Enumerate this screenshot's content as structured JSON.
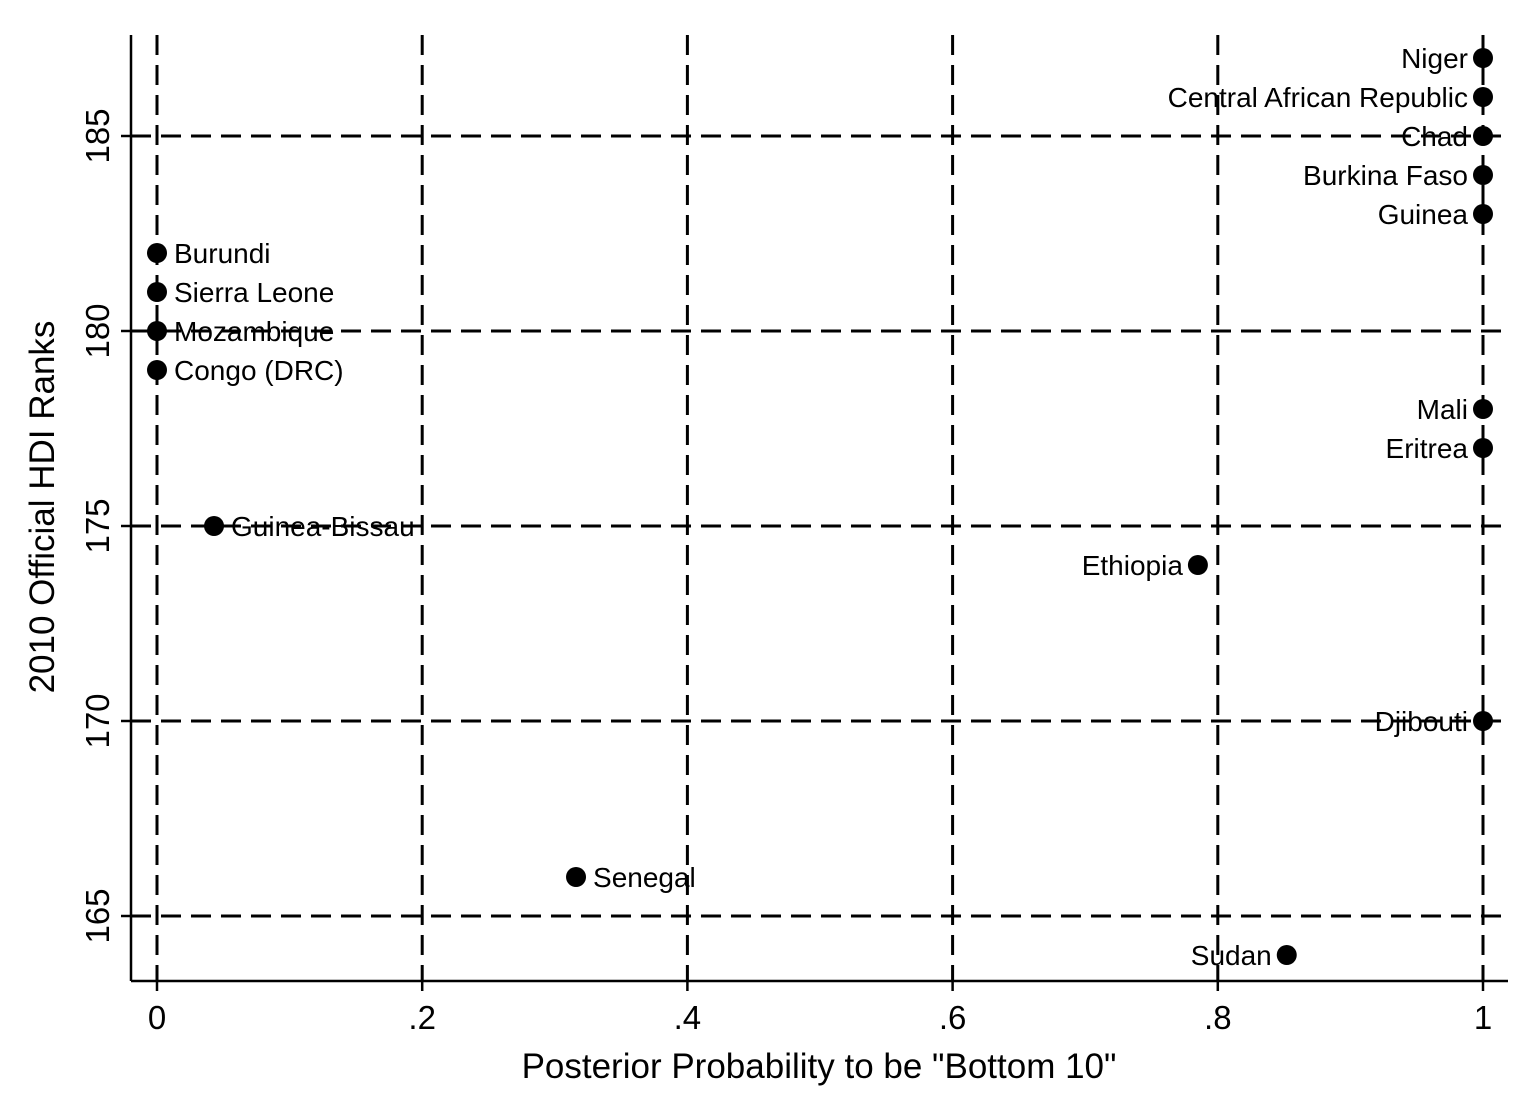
{
  "chart_data": {
    "type": "scatter",
    "xlabel": "Posterior Probability to be \"Bottom 10\"",
    "ylabel": "2010 Official HDI Ranks",
    "xlim": [
      -0.02,
      1.02
    ],
    "ylim": [
      163.4,
      187.6
    ],
    "x_ticks": [
      0,
      0.2,
      0.4,
      0.6,
      0.8,
      1
    ],
    "x_tick_labels": [
      "0",
      ".2",
      ".4",
      ".6",
      ".8",
      "1"
    ],
    "y_ticks": [
      165,
      170,
      175,
      180,
      185
    ],
    "y_tick_labels": [
      "165",
      "170",
      "175",
      "180",
      "185"
    ],
    "grid": true,
    "points": [
      {
        "label": "Niger",
        "x": 1.0,
        "y": 187,
        "label_pos": "left"
      },
      {
        "label": "Central African Republic",
        "x": 1.0,
        "y": 186,
        "label_pos": "left"
      },
      {
        "label": "Chad",
        "x": 1.0,
        "y": 185,
        "label_pos": "left"
      },
      {
        "label": "Burkina Faso",
        "x": 1.0,
        "y": 184,
        "label_pos": "left"
      },
      {
        "label": "Guinea",
        "x": 1.0,
        "y": 183,
        "label_pos": "left"
      },
      {
        "label": "Burundi",
        "x": 0.0,
        "y": 182,
        "label_pos": "right"
      },
      {
        "label": "Sierra Leone",
        "x": 0.0,
        "y": 181,
        "label_pos": "right"
      },
      {
        "label": "Mozambique",
        "x": 0.0,
        "y": 180,
        "label_pos": "right"
      },
      {
        "label": "Congo (DRC)",
        "x": 0.0,
        "y": 179,
        "label_pos": "right"
      },
      {
        "label": "Mali",
        "x": 1.0,
        "y": 178,
        "label_pos": "left"
      },
      {
        "label": "Eritrea",
        "x": 1.0,
        "y": 177,
        "label_pos": "left"
      },
      {
        "label": "Guinea-Bissau",
        "x": 0.043,
        "y": 175,
        "label_pos": "right"
      },
      {
        "label": "Ethiopia",
        "x": 0.785,
        "y": 174,
        "label_pos": "left"
      },
      {
        "label": "Djibouti",
        "x": 1.0,
        "y": 170,
        "label_pos": "left"
      },
      {
        "label": "Senegal",
        "x": 0.316,
        "y": 166,
        "label_pos": "right"
      },
      {
        "label": "Sudan",
        "x": 0.852,
        "y": 164,
        "label_pos": "left"
      }
    ]
  }
}
